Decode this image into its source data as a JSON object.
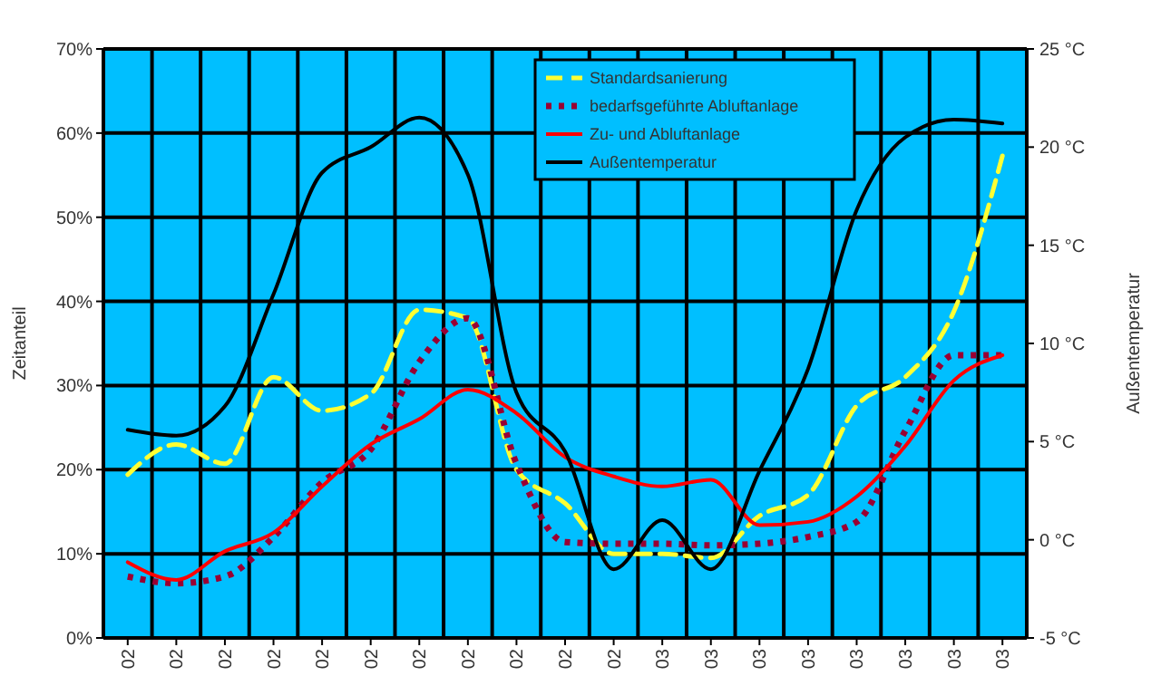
{
  "chart_data": {
    "type": "line",
    "ylabel": "Zeitanteil",
    "y2label": "Außentemperatur",
    "categories": [
      "02",
      "02",
      "02",
      "02",
      "02",
      "02",
      "02",
      "02",
      "02",
      "02",
      "02",
      "03",
      "03",
      "03",
      "03",
      "03",
      "03",
      "03",
      "03"
    ],
    "series": [
      {
        "name": "Standardsanierung",
        "color": "#ffff33",
        "line_style": "dashed",
        "values": [
          19.4,
          23,
          20.7,
          31,
          27,
          29,
          39,
          38,
          20,
          16,
          10,
          10,
          9.5,
          14.5,
          17,
          27.6,
          31,
          38.8,
          57.3
        ]
      },
      {
        "name": "bedarfsgeführte Abluftanlage",
        "color": "#990033",
        "line_style": "dotted",
        "values": [
          7.3,
          6.5,
          7.3,
          12,
          18.5,
          22.4,
          32.8,
          38,
          20.7,
          11.4,
          11.2,
          11.2,
          11,
          11.2,
          12,
          13.8,
          24.6,
          33.6,
          33.6
        ]
      },
      {
        "name": "Zu- und Abluftanlage",
        "color": "#ff0000",
        "line_style": "solid",
        "values": [
          9,
          6.9,
          10.3,
          12.5,
          18,
          23,
          26,
          29.5,
          26.7,
          21.5,
          19.2,
          18,
          18.8,
          13.4,
          13.8,
          16.8,
          22.8,
          30.6,
          33.6
        ]
      },
      {
        "name": "Außentemperatur",
        "color": "#000000",
        "line_style": "solid",
        "axis": "y2",
        "values": [
          5.6,
          5.3,
          6.8,
          12.5,
          18.7,
          20,
          21.5,
          18.6,
          7.5,
          4.5,
          -1.5,
          1,
          -1.5,
          3.5,
          8.7,
          16.8,
          20.5,
          21.4,
          21.2
        ]
      }
    ],
    "ylim": [
      0,
      70
    ],
    "yticks": [
      {
        "value": 0,
        "label": "0%"
      },
      {
        "value": 10,
        "label": "10%"
      },
      {
        "value": 20,
        "label": "20%"
      },
      {
        "value": 30,
        "label": "30%"
      },
      {
        "value": 40,
        "label": "40%"
      },
      {
        "value": 50,
        "label": "50%"
      },
      {
        "value": 60,
        "label": "60%"
      },
      {
        "value": 70,
        "label": "70%"
      }
    ],
    "y2lim": [
      -5,
      25
    ],
    "y2ticks": [
      {
        "value": -5,
        "label": "-5 °C"
      },
      {
        "value": 0,
        "label": "0 °C"
      },
      {
        "value": 5,
        "label": "5 °C"
      },
      {
        "value": 10,
        "label": "10 °C"
      },
      {
        "value": 15,
        "label": "15 °C"
      },
      {
        "value": 20,
        "label": "20 °C"
      },
      {
        "value": 25,
        "label": "25 °C"
      }
    ],
    "grid": true,
    "legend": "top",
    "marker": "none"
  }
}
